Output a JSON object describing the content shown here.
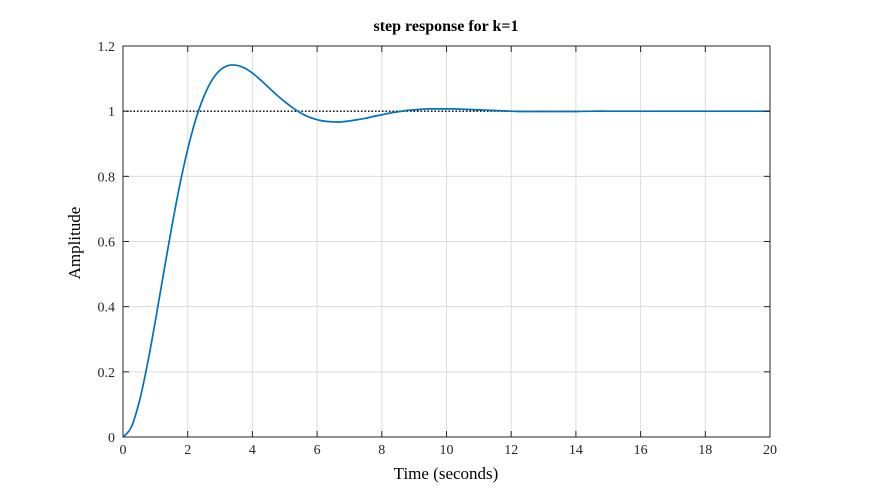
{
  "chart_data": {
    "type": "line",
    "title": "step response for k=1",
    "xlabel": "Time (seconds)",
    "ylabel": "Amplitude",
    "xlim": [
      0,
      20
    ],
    "ylim": [
      0,
      1.2
    ],
    "xticks": [
      0,
      2,
      4,
      6,
      8,
      10,
      12,
      14,
      16,
      18,
      20
    ],
    "xtick_labels": [
      "0",
      "2",
      "4",
      "6",
      "8",
      "10",
      "12",
      "14",
      "16",
      "18",
      "20"
    ],
    "yticks": [
      0,
      0.2,
      0.4,
      0.6,
      0.8,
      1,
      1.2
    ],
    "ytick_labels": [
      "0",
      "0.2",
      "0.4",
      "0.6",
      "0.8",
      "1",
      "1.2"
    ],
    "grid": true,
    "reference_line": {
      "y": 1,
      "style": "dotted",
      "color": "#000000"
    },
    "series": [
      {
        "color": "#0072BD",
        "x": [
          0,
          0.25,
          0.5,
          0.75,
          1,
          1.25,
          1.5,
          1.75,
          2,
          2.25,
          2.5,
          2.75,
          3,
          3.25,
          3.5,
          3.75,
          4,
          4.25,
          4.5,
          4.75,
          5,
          5.25,
          5.5,
          5.75,
          6,
          6.25,
          6.5,
          6.75,
          7,
          7.25,
          7.5,
          7.75,
          8,
          8.25,
          8.5,
          8.75,
          9,
          9.25,
          9.5,
          9.75,
          10,
          10.25,
          10.5,
          10.75,
          11,
          11.25,
          11.5,
          11.75,
          12,
          12.25,
          12.5,
          12.75,
          13,
          13.5,
          14,
          14.5,
          15,
          15.5,
          16,
          16.5,
          17,
          17.5,
          18,
          18.5,
          19,
          19.5,
          20
        ],
        "y": [
          0,
          0.029,
          0.107,
          0.221,
          0.356,
          0.5,
          0.641,
          0.771,
          0.883,
          0.975,
          1.045,
          1.095,
          1.126,
          1.14,
          1.141,
          1.133,
          1.117,
          1.096,
          1.073,
          1.05,
          1.029,
          1.01,
          0.994,
          0.982,
          0.974,
          0.969,
          0.967,
          0.967,
          0.97,
          0.974,
          0.978,
          0.984,
          0.989,
          0.994,
          0.998,
          1.002,
          1.004,
          1.006,
          1.007,
          1.007,
          1.007,
          1.007,
          1.006,
          1.005,
          1.004,
          1.003,
          1.002,
          1.001,
          1.0,
          0.999,
          0.999,
          0.999,
          0.999,
          0.999,
          0.999,
          1.0,
          1.0,
          1.0,
          1.0,
          1.0,
          1.0,
          1.0,
          1.0,
          1.0,
          1.0,
          1.0,
          1.0
        ]
      }
    ]
  }
}
